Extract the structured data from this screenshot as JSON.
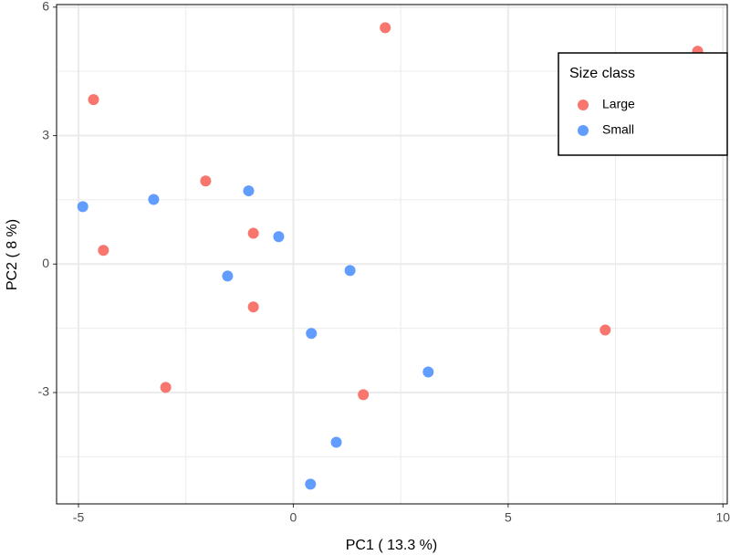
{
  "chart_data": {
    "type": "scatter",
    "x_label": "PC1 ( 13.3 %)",
    "y_label": "PC2 ( 8 %)",
    "xlim": [
      -5.51,
      10.1
    ],
    "ylim": [
      -5.6,
      6.06
    ],
    "xticks": [
      -5,
      0,
      5,
      10
    ],
    "yticks": [
      -3,
      0,
      3,
      6
    ],
    "grid": true,
    "minor_grid": true,
    "legend_title": "Size class",
    "legend_position": "top-right",
    "series": [
      {
        "name": "Large",
        "color": "#F8766D",
        "x": [
          2.14,
          9.41,
          -4.65,
          -2.04,
          -0.93,
          -4.42,
          -0.93,
          7.26,
          -2.97,
          1.63
        ],
        "values": [
          5.52,
          4.97,
          3.84,
          1.94,
          0.72,
          0.32,
          -1.0,
          -1.54,
          -2.88,
          -3.05
        ]
      },
      {
        "name": "Small",
        "color": "#619CFF",
        "x": [
          -4.9,
          -3.25,
          -1.04,
          -0.34,
          -1.53,
          1.32,
          0.42,
          3.14,
          1.0,
          0.4
        ],
        "values": [
          1.34,
          1.51,
          1.71,
          0.64,
          -0.28,
          -0.15,
          -1.62,
          -2.52,
          -4.16,
          -5.14
        ]
      }
    ]
  }
}
